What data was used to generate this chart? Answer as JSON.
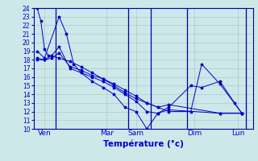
{
  "bg_color": "#cce8e8",
  "grid_color": "#aacccc",
  "line_color": "#0000cc",
  "vline_color": "#0000aa",
  "xlabel": "Température (°c)",
  "ylim": [
    10,
    24
  ],
  "xlim": [
    0,
    30
  ],
  "yticks": [
    10,
    11,
    12,
    13,
    14,
    15,
    16,
    17,
    18,
    19,
    20,
    21,
    22,
    23,
    24
  ],
  "day_labels": [
    "Ven",
    "Mar",
    "Sam",
    "Dim",
    "Lun"
  ],
  "day_x": [
    1.5,
    10,
    14,
    22,
    28
  ],
  "vline_x": [
    3,
    13,
    16,
    21,
    29
  ],
  "s1_x": [
    0.5,
    1.0,
    1.5,
    2.0,
    3.5,
    5.0,
    6.5,
    8.0,
    9.5,
    11.0,
    12.5,
    14.0,
    15.5,
    17.0,
    18.5,
    21.5,
    23.0,
    25.5,
    28.5
  ],
  "s1_y": [
    24.0,
    22.5,
    19.2,
    18.5,
    18.2,
    17.8,
    17.2,
    16.5,
    15.8,
    15.0,
    14.2,
    13.5,
    13.0,
    12.5,
    12.0,
    12.0,
    17.5,
    15.2,
    11.8
  ],
  "s2_x": [
    0.5,
    1.5,
    3.5,
    4.5,
    5.5,
    6.5,
    8.0,
    9.5,
    11.0,
    12.5,
    14.0,
    15.5,
    17.0,
    18.5,
    21.5,
    23.0,
    25.5,
    27.5,
    28.5
  ],
  "s2_y": [
    19.0,
    18.2,
    23.0,
    21.0,
    17.5,
    16.5,
    15.5,
    14.8,
    14.0,
    12.5,
    12.0,
    10.0,
    11.8,
    12.5,
    15.0,
    14.8,
    15.5,
    13.0,
    11.8
  ],
  "s3_x": [
    0.5,
    1.5,
    2.5,
    3.5,
    5.0,
    6.5,
    8.0,
    9.5,
    11.0,
    12.5,
    14.0,
    15.5,
    17.0,
    18.5,
    25.5,
    28.5
  ],
  "s3_y": [
    18.2,
    18.0,
    18.5,
    19.5,
    17.0,
    16.5,
    16.0,
    15.5,
    14.8,
    14.0,
    13.2,
    12.0,
    11.8,
    12.2,
    11.8,
    11.8
  ],
  "s4_x": [
    0.5,
    1.5,
    2.5,
    3.5,
    5.0,
    6.5,
    8.0,
    9.5,
    11.0,
    12.5,
    14.0,
    15.5,
    17.0,
    18.5,
    25.5,
    28.5
  ],
  "s4_y": [
    18.0,
    18.0,
    18.2,
    18.8,
    17.2,
    16.8,
    16.2,
    15.8,
    15.2,
    14.5,
    13.8,
    13.0,
    12.5,
    12.8,
    11.8,
    11.8
  ]
}
